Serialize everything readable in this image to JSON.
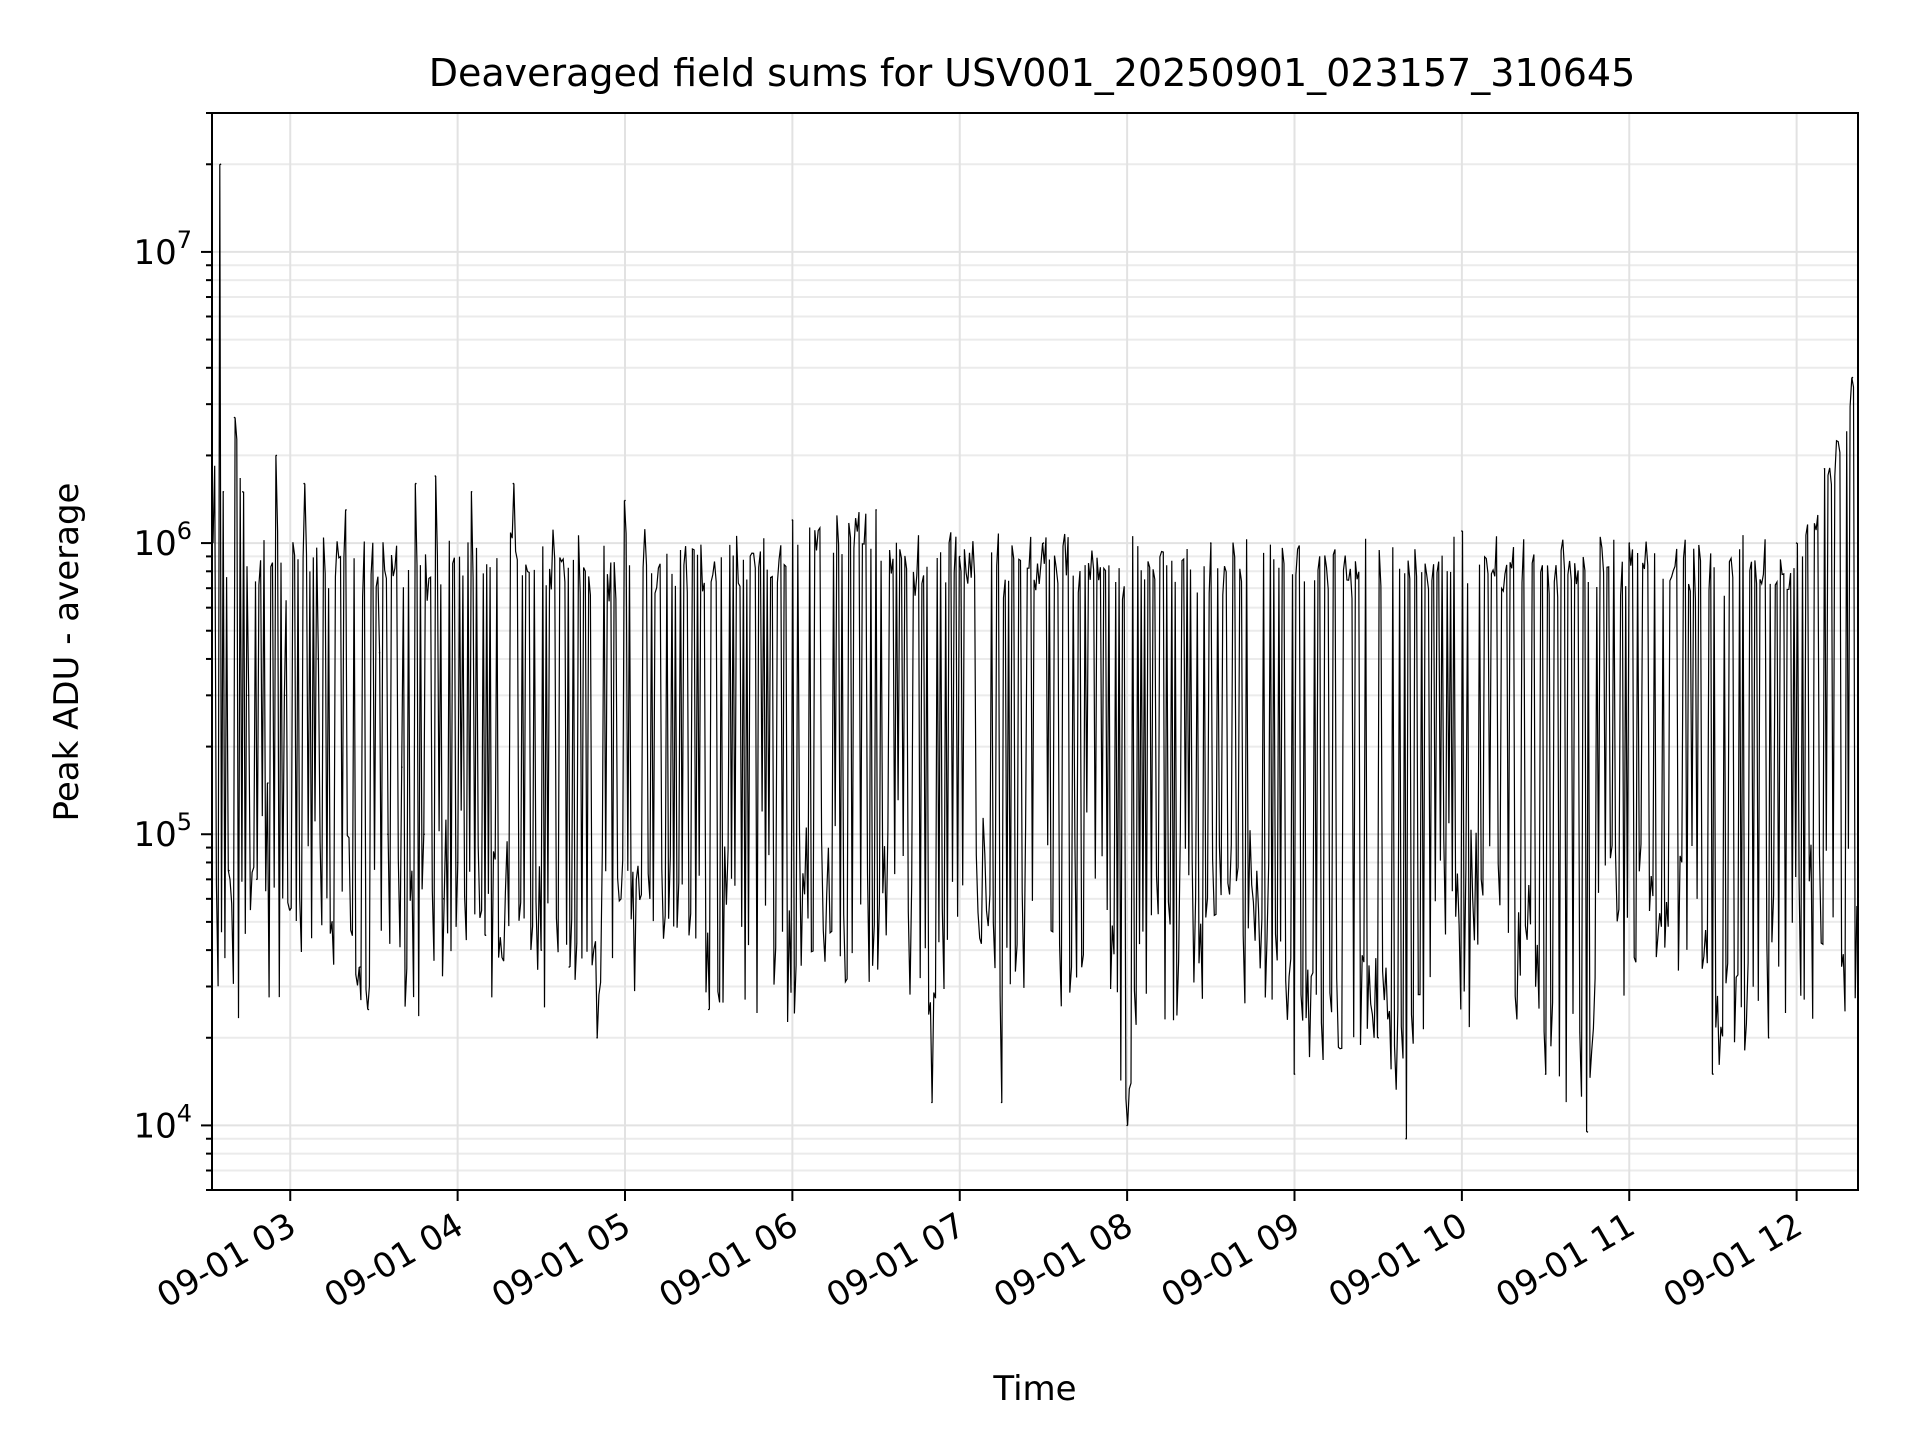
{
  "chart_data": {
    "type": "line",
    "title": "Deaveraged field sums for USV001_20250901_023157_310645",
    "xlabel": "Time",
    "ylabel": "Peak ADU - average",
    "x_axis": {
      "kind": "time",
      "xlim": [
        "2025-09-01T02:31:57",
        "2025-09-01T12:22:00"
      ],
      "ticks": [
        "2025-09-01T03:00",
        "2025-09-01T04:00",
        "2025-09-01T05:00",
        "2025-09-01T06:00",
        "2025-09-01T07:00",
        "2025-09-01T08:00",
        "2025-09-01T09:00",
        "2025-09-01T10:00",
        "2025-09-01T11:00",
        "2025-09-01T12:00"
      ],
      "tick_labels": [
        "09-01 03",
        "09-01 04",
        "09-01 05",
        "09-01 06",
        "09-01 07",
        "09-01 08",
        "09-01 09",
        "09-01 10",
        "09-01 11",
        "09-01 12"
      ]
    },
    "y_axis": {
      "scale": "log",
      "ylim": [
        6000,
        30000000
      ],
      "ticks": [
        10000,
        100000,
        1000000,
        10000000
      ],
      "tick_labels": [
        {
          "base": "10",
          "exp": "4"
        },
        {
          "base": "10",
          "exp": "5"
        },
        {
          "base": "10",
          "exp": "6"
        },
        {
          "base": "10",
          "exp": "7"
        }
      ]
    },
    "grid": {
      "major": true,
      "minor": true
    },
    "legend": "none",
    "series": [
      {
        "color": "#000000",
        "points_note": "dense oscillating series; points listed as [time, value]",
        "points": [
          [
            "2025-09-01T02:32",
            1000000
          ],
          [
            "2025-09-01T02:35",
            20000000
          ],
          [
            "2025-09-01T02:36",
            1500000
          ],
          [
            "2025-09-01T02:38",
            75000
          ],
          [
            "2025-09-01T02:40",
            2700000
          ],
          [
            "2025-09-01T02:43",
            1500000
          ],
          [
            "2025-09-01T02:45",
            300000
          ],
          [
            "2025-09-01T02:48",
            70000
          ],
          [
            "2025-09-01T02:52",
            150000
          ],
          [
            "2025-09-01T02:55",
            2000000
          ],
          [
            "2025-09-01T02:58",
            300000
          ],
          [
            "2025-09-01T03:00",
            55000
          ],
          [
            "2025-09-01T03:05",
            1600000
          ],
          [
            "2025-09-01T03:10",
            400000
          ],
          [
            "2025-09-01T03:15",
            50000
          ],
          [
            "2025-09-01T03:20",
            1300000
          ],
          [
            "2025-09-01T03:25",
            35000
          ],
          [
            "2025-09-01T03:28",
            25000
          ],
          [
            "2025-09-01T03:32",
            420000
          ],
          [
            "2025-09-01T03:35",
            100000
          ],
          [
            "2025-09-01T03:40",
            170000
          ],
          [
            "2025-09-01T03:45",
            1600000
          ],
          [
            "2025-09-01T03:48",
            100000
          ],
          [
            "2025-09-01T03:52",
            1700000
          ],
          [
            "2025-09-01T03:55",
            60000
          ],
          [
            "2025-09-01T04:00",
            80000
          ],
          [
            "2025-09-01T04:05",
            1500000
          ],
          [
            "2025-09-01T04:10",
            45000
          ],
          [
            "2025-09-01T04:20",
            1600000
          ],
          [
            "2025-09-01T04:30",
            40000
          ],
          [
            "2025-09-01T04:40",
            35000
          ],
          [
            "2025-09-01T04:50",
            20000
          ],
          [
            "2025-09-01T05:00",
            1400000
          ],
          [
            "2025-09-01T05:30",
            25000
          ],
          [
            "2025-09-01T06:00",
            1200000
          ],
          [
            "2025-09-01T06:30",
            1300000
          ],
          [
            "2025-09-01T06:50",
            12000
          ],
          [
            "2025-09-01T07:00",
            900000
          ],
          [
            "2025-09-01T07:15",
            12000
          ],
          [
            "2025-09-01T07:30",
            1000000
          ],
          [
            "2025-09-01T08:00",
            10000
          ],
          [
            "2025-09-01T08:30",
            1000000
          ],
          [
            "2025-09-01T09:00",
            15000
          ],
          [
            "2025-09-01T09:30",
            20000
          ],
          [
            "2025-09-01T09:40",
            9000
          ],
          [
            "2025-09-01T10:00",
            1100000
          ],
          [
            "2025-09-01T10:30",
            15000
          ],
          [
            "2025-09-01T10:45",
            9500
          ],
          [
            "2025-09-01T11:00",
            1000000
          ],
          [
            "2025-09-01T11:30",
            15000
          ],
          [
            "2025-09-01T11:50",
            20000
          ],
          [
            "2025-09-01T12:00",
            1000000
          ],
          [
            "2025-09-01T12:10",
            1800000
          ],
          [
            "2025-09-01T12:20",
            3700000
          ]
        ]
      }
    ]
  }
}
